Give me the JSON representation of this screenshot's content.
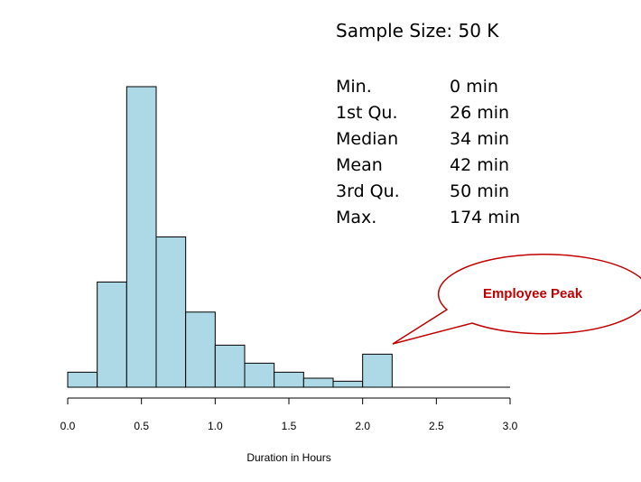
{
  "stats": {
    "title": "Sample Size: 50 K",
    "rows": [
      {
        "label": "Min.",
        "value": "0 min"
      },
      {
        "label": "1st Qu.",
        "value": "26 min"
      },
      {
        "label": "Median",
        "value": "34 min"
      },
      {
        "label": "Mean",
        "value": "42 min"
      },
      {
        "label": "3rd Qu.",
        "value": "50 min"
      },
      {
        "label": "Max.",
        "value": "174 min"
      }
    ]
  },
  "callout": {
    "text": "Employee Peak",
    "color": "#c00000"
  },
  "chart_data": {
    "type": "bar",
    "subtype": "histogram",
    "xlabel": "Duration in Hours",
    "ylabel": "",
    "xlim": [
      0,
      3
    ],
    "x_ticks": [
      "0.0",
      "0.5",
      "1.0",
      "1.5",
      "2.0",
      "2.5",
      "3.0"
    ],
    "bin_width": 0.2,
    "bins": [
      {
        "start": 0.0,
        "end": 0.2,
        "value": 5
      },
      {
        "start": 0.2,
        "end": 0.4,
        "value": 35
      },
      {
        "start": 0.4,
        "end": 0.6,
        "value": 100
      },
      {
        "start": 0.6,
        "end": 0.8,
        "value": 50
      },
      {
        "start": 0.8,
        "end": 1.0,
        "value": 25
      },
      {
        "start": 1.0,
        "end": 1.2,
        "value": 14
      },
      {
        "start": 1.2,
        "end": 1.4,
        "value": 8
      },
      {
        "start": 1.4,
        "end": 1.6,
        "value": 5
      },
      {
        "start": 1.6,
        "end": 1.8,
        "value": 3
      },
      {
        "start": 1.8,
        "end": 2.0,
        "value": 2
      },
      {
        "start": 2.0,
        "end": 2.2,
        "value": 11
      }
    ],
    "bar_color": "#add8e6",
    "bar_stroke": "#000000",
    "grid": false,
    "y_axis_shown": false
  }
}
